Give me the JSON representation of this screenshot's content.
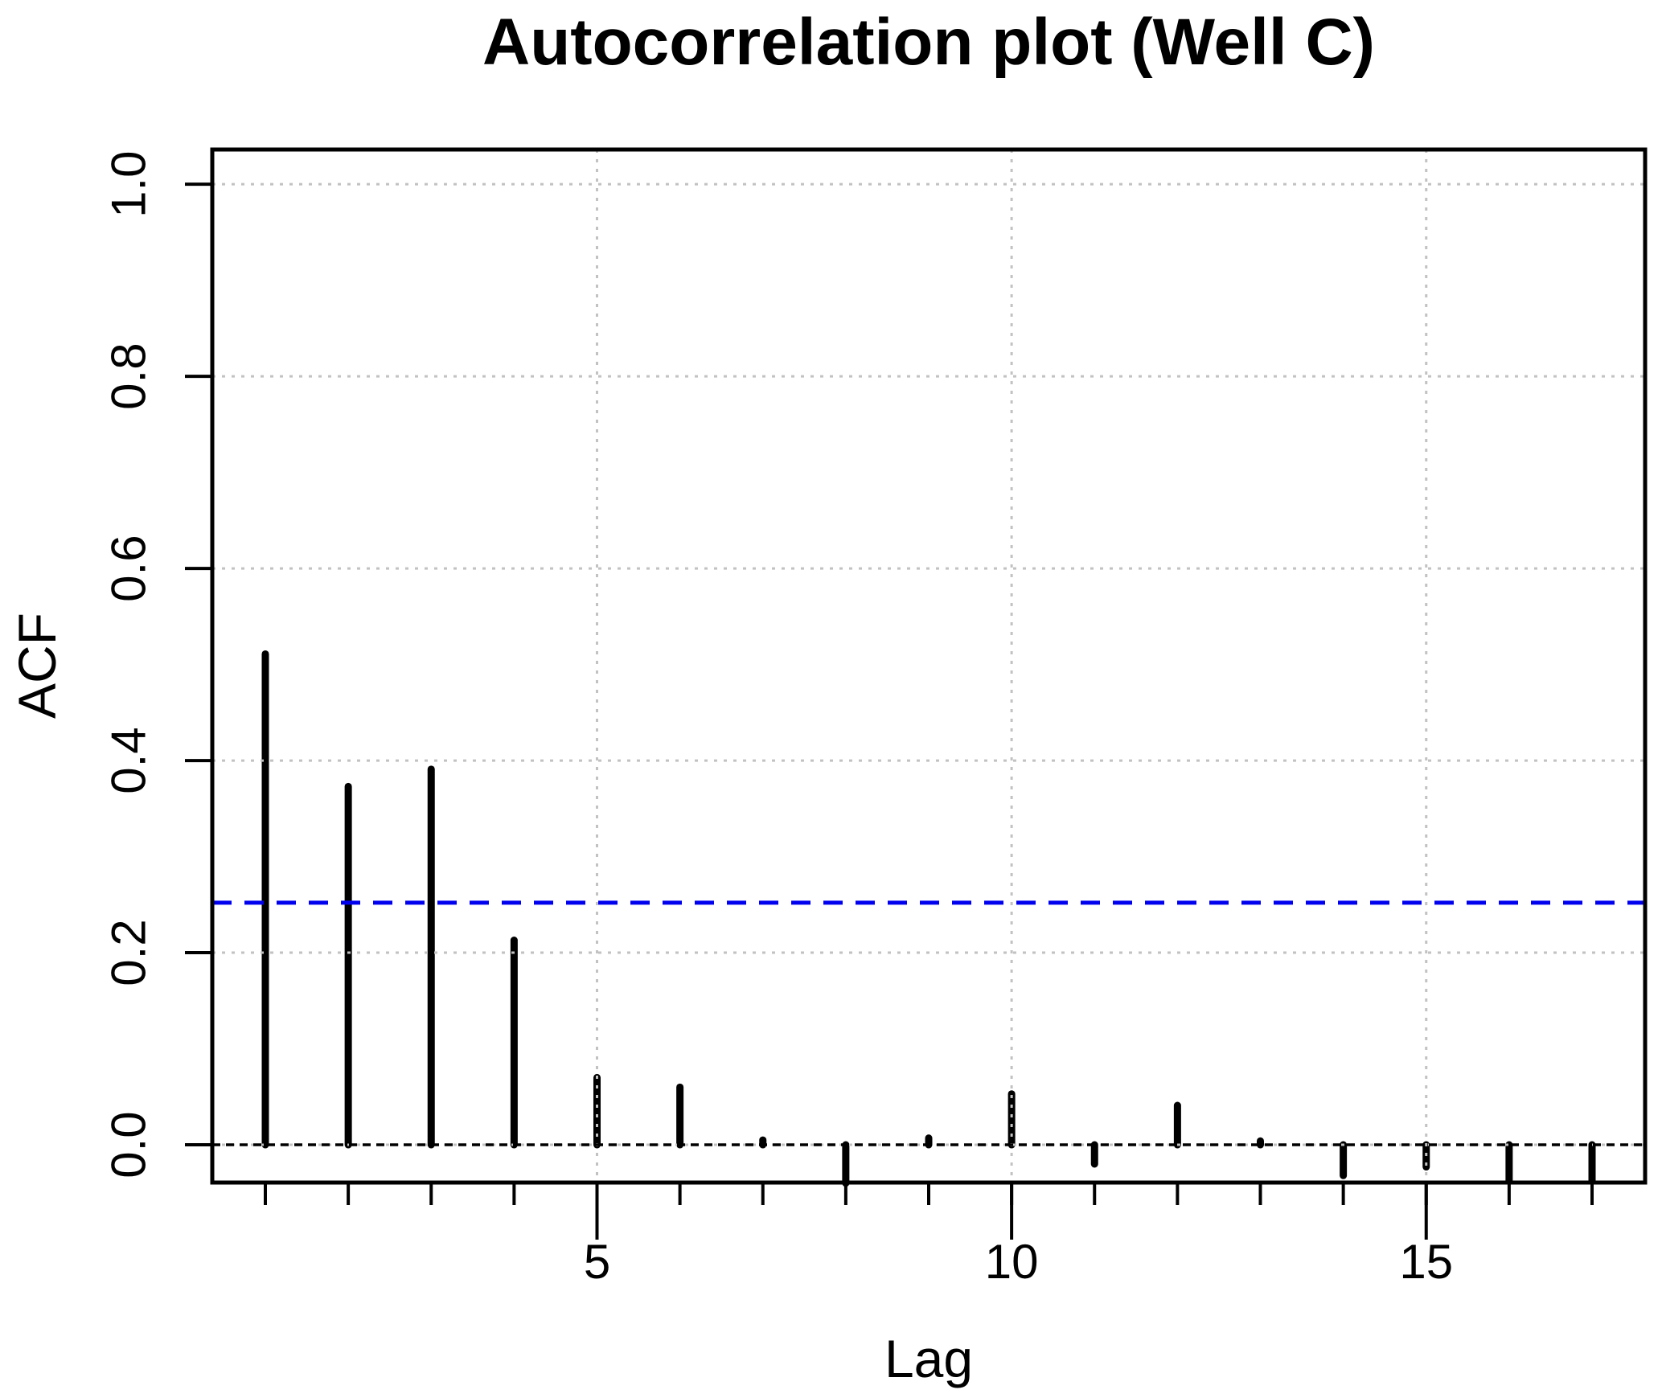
{
  "title": "Autocorrelation plot (Well C)",
  "y_axis": {
    "label": "ACF",
    "ticks": [
      {
        "value": 0.0,
        "label": "0.0"
      },
      {
        "value": 0.2,
        "label": "0.2"
      },
      {
        "value": 0.4,
        "label": "0.4"
      },
      {
        "value": 0.6,
        "label": "0.6"
      },
      {
        "value": 0.8,
        "label": "0.8"
      },
      {
        "value": 1.0,
        "label": "1.0"
      }
    ]
  },
  "x_axis": {
    "label": "Lag",
    "major_ticks": [
      {
        "value": 5,
        "label": "5"
      },
      {
        "value": 10,
        "label": "10"
      },
      {
        "value": 15,
        "label": "15"
      }
    ]
  },
  "chart_data": {
    "type": "bar",
    "subtype": "stem-acf",
    "title": "Autocorrelation plot (Well C)",
    "xlabel": "Lag",
    "ylabel": "ACF",
    "x": [
      1,
      2,
      3,
      4,
      5,
      6,
      7,
      8,
      9,
      10,
      11,
      12,
      13,
      14,
      15,
      16,
      17
    ],
    "values": [
      0.511,
      0.373,
      0.391,
      0.213,
      0.07,
      0.06,
      0.005,
      -0.04,
      0.007,
      0.053,
      -0.02,
      0.041,
      0.004,
      -0.032,
      -0.023,
      -0.038,
      -0.038
    ],
    "xlim": [
      0.36,
      17.64
    ],
    "ylim": [
      -0.0393,
      1.0361
    ],
    "confidence_line": {
      "value": 0.252,
      "style": "dashed",
      "color": "#0000ee"
    },
    "zero_line": {
      "value": 0.0,
      "style": "dashed",
      "color": "#000000"
    },
    "grid": {
      "on": true,
      "style": "dotted",
      "color": "#c2c2c2",
      "horizontal_at": [
        0.0,
        0.2,
        0.4,
        0.6,
        0.8,
        1.0
      ],
      "vertical_at": [
        5,
        10,
        15
      ]
    },
    "legend": "none"
  },
  "colors": {
    "bar": "#000000",
    "background": "#ffffff",
    "grid": "#c2c2c2",
    "ci_line": "#0000ee",
    "axis": "#000000"
  }
}
